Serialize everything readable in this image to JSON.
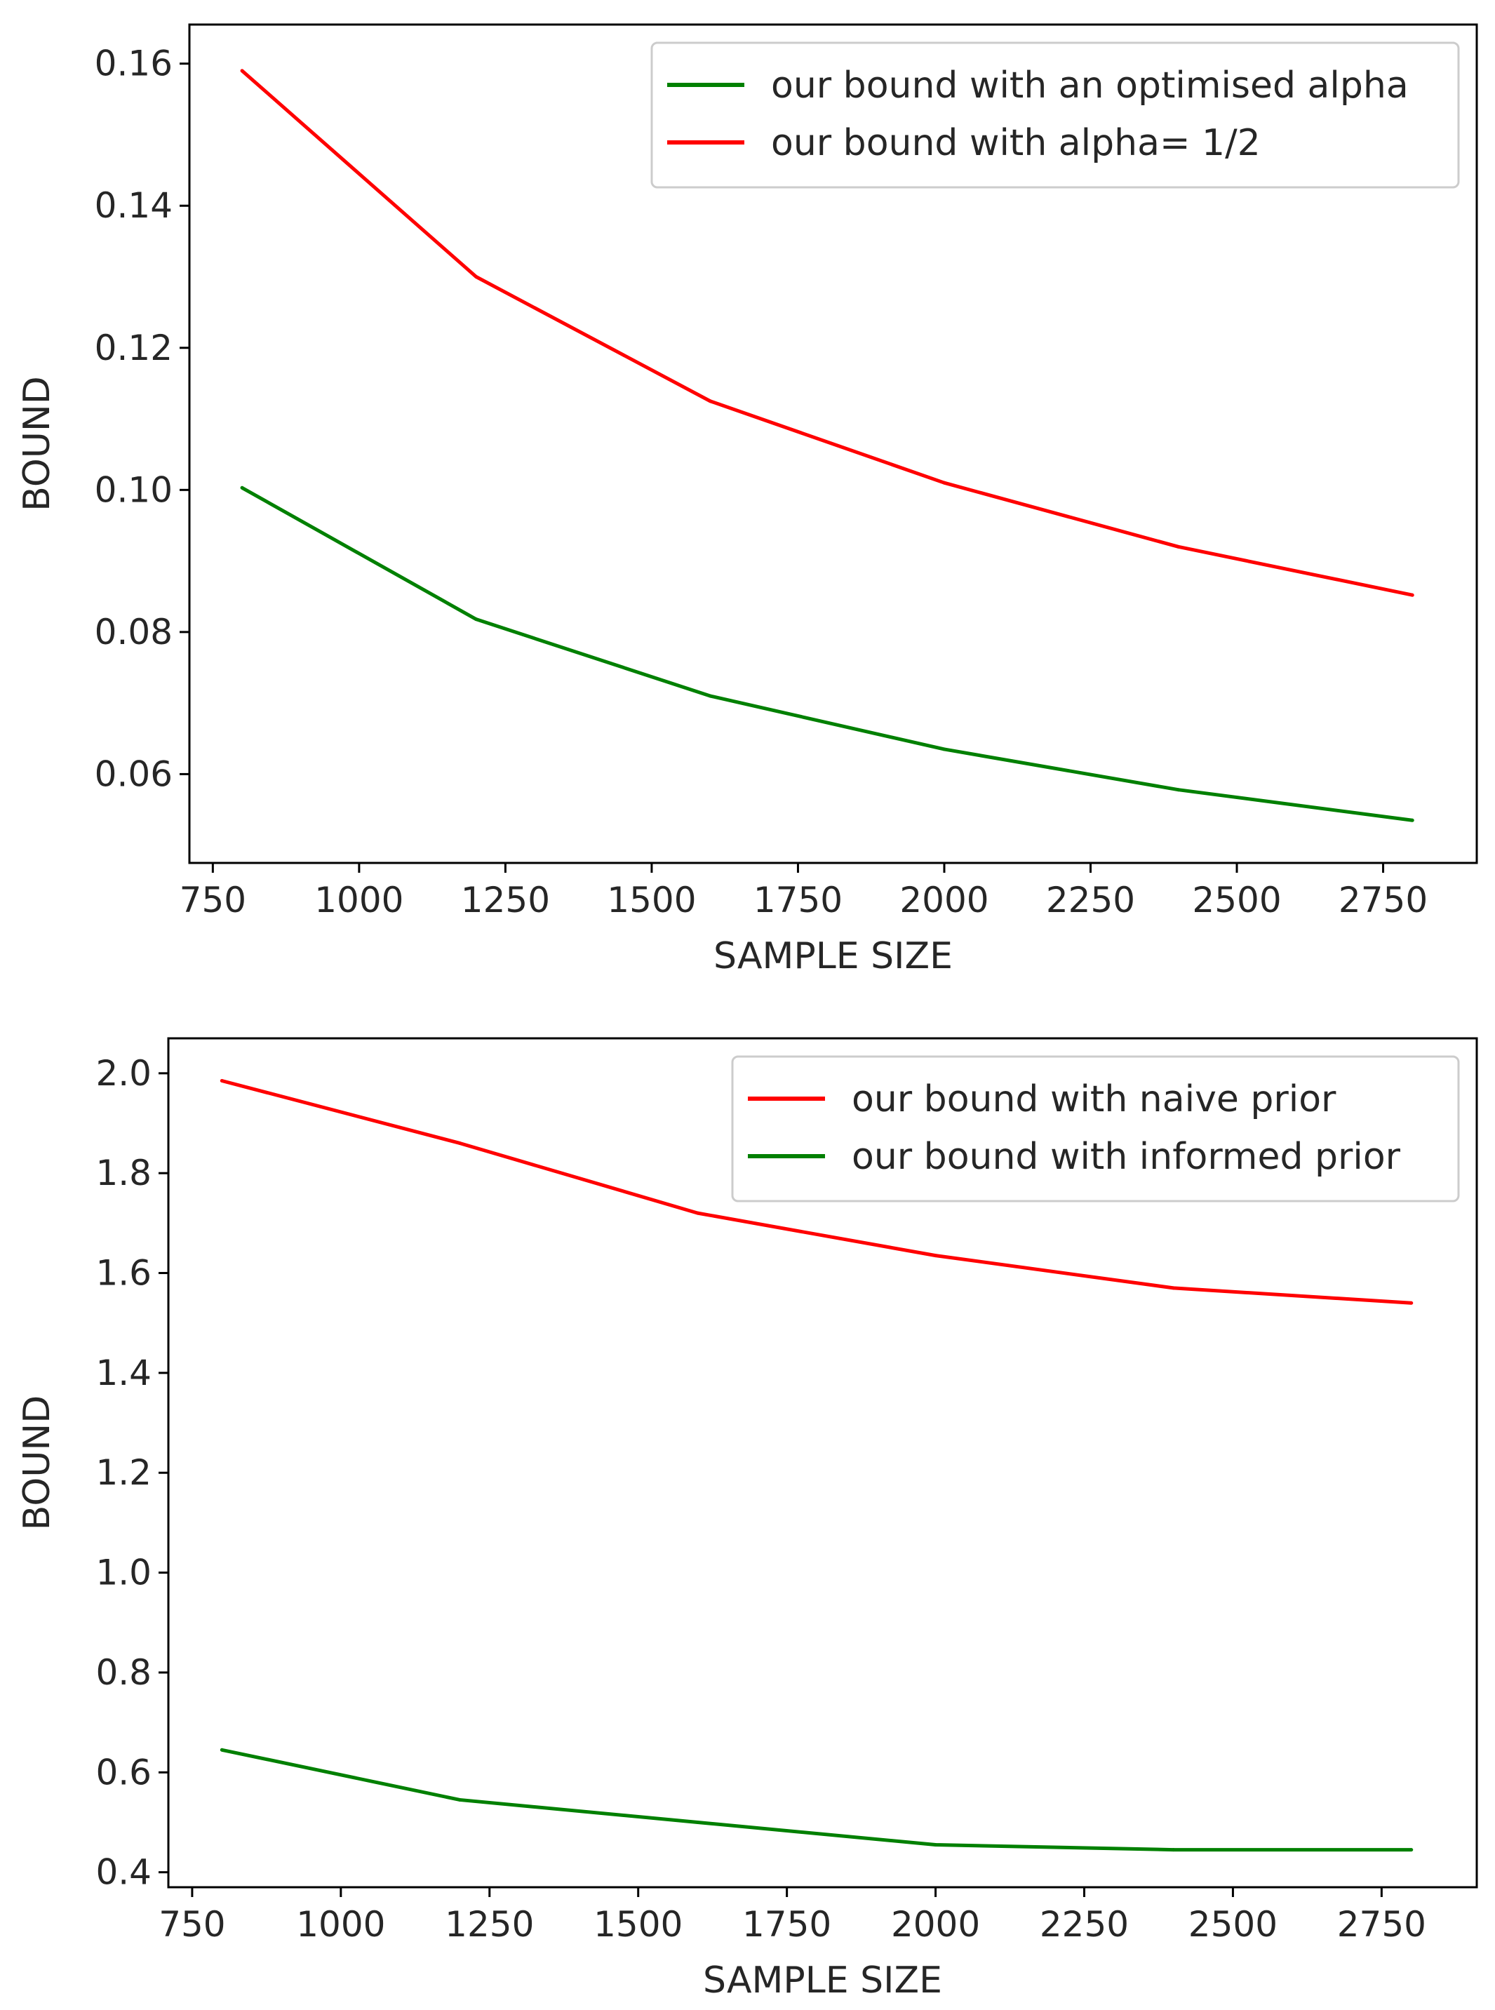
{
  "chart_data": [
    {
      "type": "line",
      "title": "",
      "xlabel": "SAMPLE SIZE",
      "ylabel": "BOUND",
      "xlim": [
        710,
        2910
      ],
      "ylim": [
        0.0475,
        0.1655
      ],
      "xticks": [
        750,
        1000,
        1250,
        1500,
        1750,
        2000,
        2250,
        2500,
        2750
      ],
      "xtick_labels": [
        "750",
        "1000",
        "1250",
        "1500",
        "1750",
        "2000",
        "2250",
        "2500",
        "2750"
      ],
      "yticks": [
        0.06,
        0.08,
        0.1,
        0.12,
        0.14,
        0.16
      ],
      "ytick_labels": [
        "0.06",
        "0.08",
        "0.10",
        "0.12",
        "0.14",
        "0.16"
      ],
      "grid": false,
      "legend_position": "top-right",
      "x": [
        800,
        1200,
        1600,
        2000,
        2400,
        2800
      ],
      "series": [
        {
          "name": "our bound with an optimised alpha",
          "color": "#008000",
          "values": [
            0.1003,
            0.0818,
            0.071,
            0.0635,
            0.0578,
            0.0535
          ]
        },
        {
          "name": "our bound with alpha= 1/2",
          "color": "#ff0000",
          "values": [
            0.159,
            0.13,
            0.1125,
            0.101,
            0.092,
            0.0852
          ]
        }
      ]
    },
    {
      "type": "line",
      "title": "",
      "xlabel": "SAMPLE SIZE",
      "ylabel": "BOUND",
      "xlim": [
        710,
        2910
      ],
      "ylim": [
        0.37,
        2.07
      ],
      "xticks": [
        750,
        1000,
        1250,
        1500,
        1750,
        2000,
        2250,
        2500,
        2750
      ],
      "xtick_labels": [
        "750",
        "1000",
        "1250",
        "1500",
        "1750",
        "2000",
        "2250",
        "2500",
        "2750"
      ],
      "yticks": [
        0.4,
        0.6,
        0.8,
        1.0,
        1.2,
        1.4,
        1.6,
        1.8,
        2.0
      ],
      "ytick_labels": [
        "0.4",
        "0.6",
        "0.8",
        "1.0",
        "1.2",
        "1.4",
        "1.6",
        "1.8",
        "2.0"
      ],
      "grid": false,
      "legend_position": "top-right",
      "x": [
        800,
        1200,
        1600,
        2000,
        2400,
        2800
      ],
      "series": [
        {
          "name": "our bound with naive prior",
          "color": "#ff0000",
          "values": [
            1.985,
            1.86,
            1.72,
            1.635,
            1.57,
            1.54
          ]
        },
        {
          "name": "our bound with informed prior",
          "color": "#008000",
          "values": [
            0.645,
            0.545,
            0.5,
            0.455,
            0.445,
            0.445
          ]
        }
      ]
    }
  ]
}
